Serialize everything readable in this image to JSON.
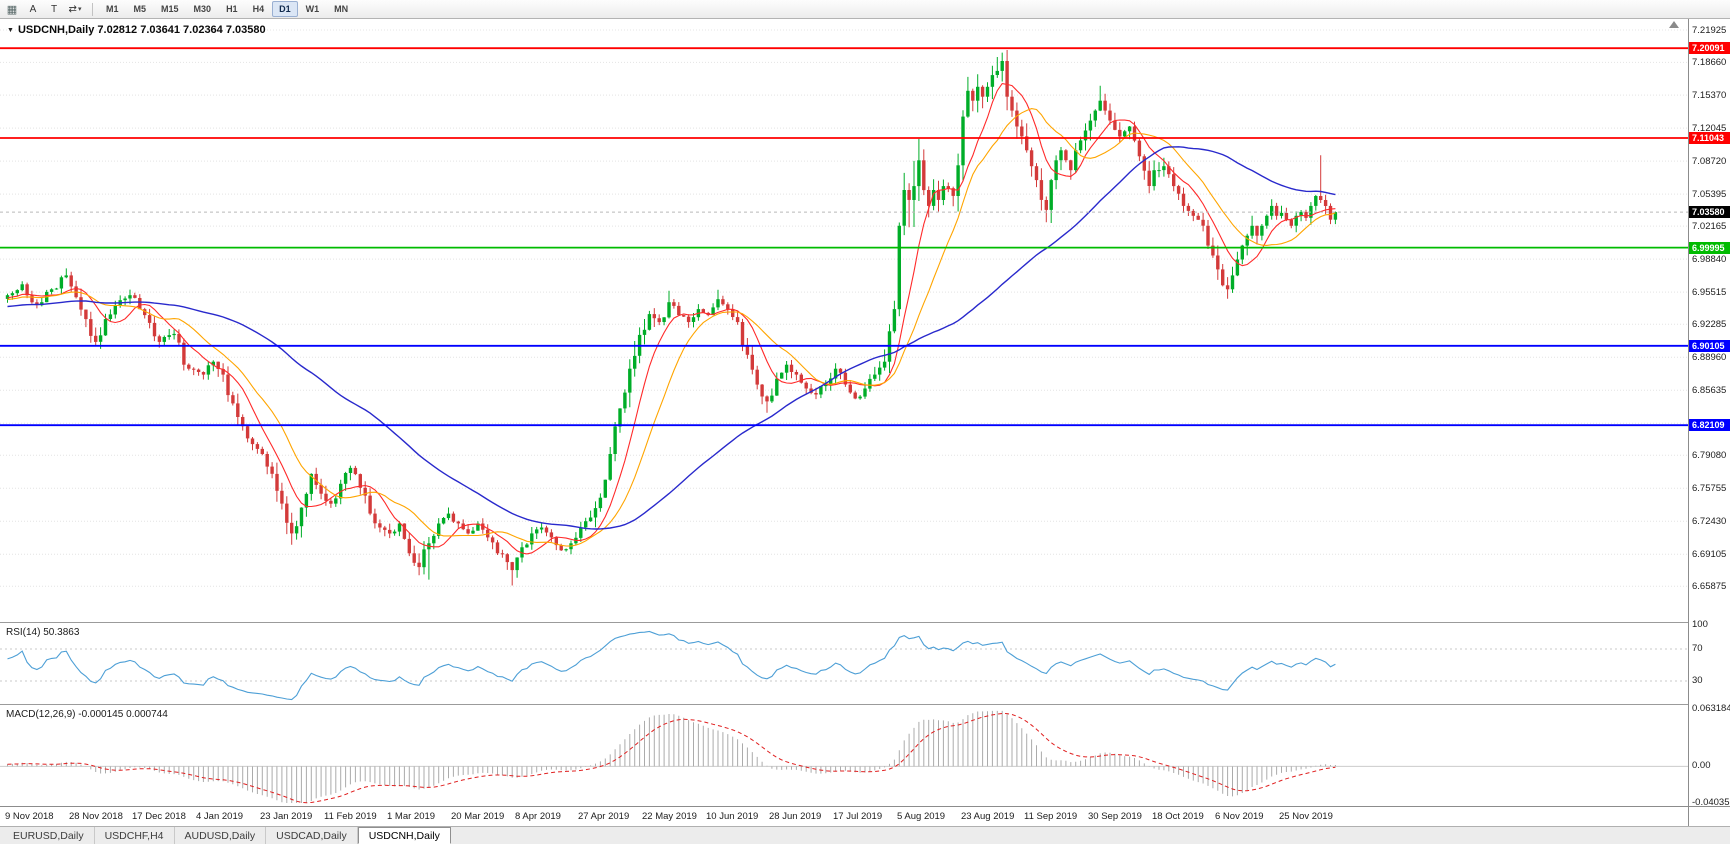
{
  "toolbar": {
    "tools": {
      "arrow": "A",
      "text": "T"
    },
    "timeframes": [
      "M1",
      "M5",
      "M15",
      "M30",
      "H1",
      "H4",
      "D1",
      "W1",
      "MN"
    ],
    "active_timeframe": "D1"
  },
  "chart": {
    "title": "USDCNH,Daily 7.02812 7.03641 7.02364 7.03580",
    "symbol": "USDCNH,Daily",
    "ohlc": {
      "open": "7.02812",
      "high": "7.03641",
      "low": "7.02364",
      "close": "7.03580"
    },
    "current_price": "7.03580",
    "price_axis": [
      "7.21925",
      "7.18660",
      "7.15370",
      "7.12045",
      "7.08720",
      "7.05395",
      "7.02165",
      "6.98840",
      "6.95515",
      "6.92285",
      "6.88960",
      "6.85635",
      "6.82310",
      "6.79080",
      "6.75755",
      "6.72430",
      "6.69105",
      "6.65875"
    ],
    "hlines": [
      {
        "label": "7.20091",
        "price": 7.20091,
        "color": "#FF0000"
      },
      {
        "label": "7.11043",
        "price": 7.11043,
        "color": "#FF0000"
      },
      {
        "label": "6.99995",
        "price": 6.99995,
        "color": "#00BB00"
      },
      {
        "label": "6.90105",
        "price": 6.90105,
        "color": "#0000FF"
      },
      {
        "label": "6.82109",
        "price": 6.82109,
        "color": "#0000FF"
      }
    ],
    "colors": {
      "bull": "#00AD28",
      "bear": "#D33A3A",
      "grid": "#e4e4e4",
      "rsi": "#4D9FD6",
      "macd_hist": "#ABABAB",
      "macd_signal": "#E02020"
    }
  },
  "rsi_panel": {
    "label": "RSI(14) 50.3863",
    "scale": [
      "100",
      "70",
      "30"
    ],
    "levels": [
      70,
      30
    ]
  },
  "macd_panel": {
    "label": "MACD(12,26,9) -0.000145 0.000744",
    "scale": [
      "0.063184",
      "0.00",
      "-0.040355"
    ]
  },
  "time_axis": [
    "9 Nov 2018",
    "28 Nov 2018",
    "17 Dec 2018",
    "4 Jan 2019",
    "23 Jan 2019",
    "11 Feb 2019",
    "1 Mar 2019",
    "20 Mar 2019",
    "8 Apr 2019",
    "27 Apr 2019",
    "22 May 2019",
    "10 Jun 2019",
    "28 Jun 2019",
    "17 Jul 2019",
    "5 Aug 2019",
    "23 Aug 2019",
    "11 Sep 2019",
    "30 Sep 2019",
    "18 Oct 2019",
    "6 Nov 2019",
    "25 Nov 2019"
  ],
  "tabs": [
    {
      "label": "EURUSD,Daily",
      "active": false
    },
    {
      "label": "USDCHF,H4",
      "active": false
    },
    {
      "label": "AUDUSD,Daily",
      "active": false
    },
    {
      "label": "USDCAD,Daily",
      "active": false
    },
    {
      "label": "USDCNH,Daily",
      "active": true
    }
  ],
  "chart_data": {
    "type": "candlestick",
    "symbol": "USDCNH",
    "timeframe": "Daily",
    "bar_count": 272,
    "bars_per_x_label": 13,
    "price_range_visible": [
      6.648,
      7.229
    ],
    "horizontal_levels": [
      7.20091,
      7.11043,
      6.99995,
      6.90105,
      6.82109
    ],
    "moving_averages": [
      {
        "name": "fast",
        "period": 8,
        "color": "#FF2A2A"
      },
      {
        "name": "medium",
        "period": 16,
        "color": "#FFA500"
      },
      {
        "name": "slow",
        "period": 55,
        "color": "#2929CC"
      }
    ],
    "indicators": [
      {
        "name": "RSI",
        "period": 14,
        "current_value": 50.3863,
        "levels": [
          30,
          70
        ]
      },
      {
        "name": "MACD",
        "fast": 12,
        "slow": 26,
        "signal": 9,
        "current_values": [
          -0.000145,
          0.000744
        ]
      }
    ],
    "anchor_closes": [
      [
        0,
        6.952
      ],
      [
        3,
        6.963
      ],
      [
        6,
        6.942
      ],
      [
        9,
        6.958
      ],
      [
        12,
        6.972
      ],
      [
        14,
        6.95
      ],
      [
        16,
        6.928
      ],
      [
        18,
        6.905
      ],
      [
        20,
        6.928
      ],
      [
        22,
        6.942
      ],
      [
        25,
        6.952
      ],
      [
        28,
        6.932
      ],
      [
        31,
        6.905
      ],
      [
        34,
        6.913
      ],
      [
        37,
        6.878
      ],
      [
        40,
        6.872
      ],
      [
        42,
        6.885
      ],
      [
        44,
        6.872
      ],
      [
        46,
        6.843
      ],
      [
        48,
        6.82
      ],
      [
        50,
        6.802
      ],
      [
        52,
        6.792
      ],
      [
        54,
        6.772
      ],
      [
        56,
        6.742
      ],
      [
        58,
        6.712
      ],
      [
        60,
        6.738
      ],
      [
        62,
        6.772
      ],
      [
        64,
        6.752
      ],
      [
        66,
        6.742
      ],
      [
        68,
        6.762
      ],
      [
        70,
        6.778
      ],
      [
        72,
        6.758
      ],
      [
        74,
        6.732
      ],
      [
        76,
        6.718
      ],
      [
        78,
        6.712
      ],
      [
        80,
        6.722
      ],
      [
        82,
        6.692
      ],
      [
        84,
        6.678
      ],
      [
        86,
        6.702
      ],
      [
        88,
        6.722
      ],
      [
        90,
        6.732
      ],
      [
        92,
        6.722
      ],
      [
        94,
        6.712
      ],
      [
        96,
        6.722
      ],
      [
        98,
        6.708
      ],
      [
        100,
        6.692
      ],
      [
        103,
        6.675
      ],
      [
        105,
        6.698
      ],
      [
        107,
        6.712
      ],
      [
        109,
        6.718
      ],
      [
        111,
        6.708
      ],
      [
        113,
        6.695
      ],
      [
        115,
        6.702
      ],
      [
        117,
        6.718
      ],
      [
        119,
        6.728
      ],
      [
        121,
        6.748
      ],
      [
        123,
        6.792
      ],
      [
        125,
        6.838
      ],
      [
        127,
        6.878
      ],
      [
        129,
        6.912
      ],
      [
        131,
        6.933
      ],
      [
        133,
        6.925
      ],
      [
        135,
        6.945
      ],
      [
        137,
        6.932
      ],
      [
        139,
        6.925
      ],
      [
        141,
        6.938
      ],
      [
        143,
        6.932
      ],
      [
        145,
        6.948
      ],
      [
        147,
        6.938
      ],
      [
        149,
        6.925
      ],
      [
        151,
        6.892
      ],
      [
        153,
        6.862
      ],
      [
        155,
        6.845
      ],
      [
        157,
        6.868
      ],
      [
        159,
        6.882
      ],
      [
        161,
        6.872
      ],
      [
        163,
        6.858
      ],
      [
        165,
        6.852
      ],
      [
        167,
        6.862
      ],
      [
        169,
        6.878
      ],
      [
        171,
        6.862
      ],
      [
        173,
        6.848
      ],
      [
        175,
        6.858
      ],
      [
        177,
        6.872
      ],
      [
        179,
        6.885
      ],
      [
        181,
        6.938
      ],
      [
        182,
        7.022
      ],
      [
        183,
        7.058
      ],
      [
        184,
        7.048
      ],
      [
        185,
        7.062
      ],
      [
        186,
        7.088
      ],
      [
        187,
        7.058
      ],
      [
        188,
        7.042
      ],
      [
        189,
        7.058
      ],
      [
        190,
        7.048
      ],
      [
        191,
        7.062
      ],
      [
        193,
        7.052
      ],
      [
        195,
        7.132
      ],
      [
        196,
        7.158
      ],
      [
        197,
        7.148
      ],
      [
        198,
        7.162
      ],
      [
        199,
        7.152
      ],
      [
        200,
        7.162
      ],
      [
        202,
        7.178
      ],
      [
        203,
        7.188
      ],
      [
        204,
        7.152
      ],
      [
        205,
        7.138
      ],
      [
        206,
        7.122
      ],
      [
        207,
        7.112
      ],
      [
        208,
        7.098
      ],
      [
        209,
        7.082
      ],
      [
        210,
        7.068
      ],
      [
        211,
        7.048
      ],
      [
        212,
        7.038
      ],
      [
        213,
        7.068
      ],
      [
        214,
        7.088
      ],
      [
        215,
        7.098
      ],
      [
        216,
        7.088
      ],
      [
        217,
        7.078
      ],
      [
        218,
        7.098
      ],
      [
        219,
        7.108
      ],
      [
        220,
        7.118
      ],
      [
        221,
        7.128
      ],
      [
        222,
        7.138
      ],
      [
        223,
        7.148
      ],
      [
        224,
        7.138
      ],
      [
        225,
        7.128
      ],
      [
        227,
        7.112
      ],
      [
        229,
        7.122
      ],
      [
        231,
        7.092
      ],
      [
        233,
        7.062
      ],
      [
        234,
        7.078
      ],
      [
        236,
        7.082
      ],
      [
        238,
        7.062
      ],
      [
        240,
        7.042
      ],
      [
        242,
        7.032
      ],
      [
        244,
        7.022
      ],
      [
        245,
        7.002
      ],
      [
        246,
        6.992
      ],
      [
        247,
        6.978
      ],
      [
        248,
        6.962
      ],
      [
        249,
        6.958
      ],
      [
        250,
        6.972
      ],
      [
        251,
        6.988
      ],
      [
        252,
        7.002
      ],
      [
        253,
        7.012
      ],
      [
        254,
        7.022
      ],
      [
        255,
        7.012
      ],
      [
        256,
        7.022
      ],
      [
        257,
        7.032
      ],
      [
        258,
        7.042
      ],
      [
        259,
        7.032
      ],
      [
        260,
        7.035
      ],
      [
        261,
        7.028
      ],
      [
        262,
        7.022
      ],
      [
        263,
        7.032
      ],
      [
        264,
        7.036
      ],
      [
        265,
        7.03
      ],
      [
        266,
        7.042
      ],
      [
        267,
        7.052
      ],
      [
        268,
        7.048
      ],
      [
        269,
        7.042
      ],
      [
        270,
        7.0281
      ],
      [
        271,
        7.0358
      ]
    ],
    "wick_overrides": [
      [
        12,
        "high",
        6.979
      ],
      [
        58,
        "low",
        6.7005
      ],
      [
        86,
        "low",
        6.6655
      ],
      [
        103,
        "low",
        6.6595
      ],
      [
        135,
        "high",
        6.9565
      ],
      [
        145,
        "high",
        6.9575
      ],
      [
        155,
        "low",
        6.8335
      ],
      [
        186,
        "high",
        7.1095
      ],
      [
        196,
        "high",
        7.172
      ],
      [
        202,
        "high",
        7.192
      ],
      [
        203,
        "high",
        7.1965
      ],
      [
        212,
        "low",
        7.0255
      ],
      [
        223,
        "high",
        7.163
      ],
      [
        249,
        "low",
        6.9485
      ],
      [
        268,
        "high",
        7.093
      ]
    ],
    "last_bar": {
      "open": 7.02812,
      "high": 7.03641,
      "low": 7.02364,
      "close": 7.0358
    }
  }
}
